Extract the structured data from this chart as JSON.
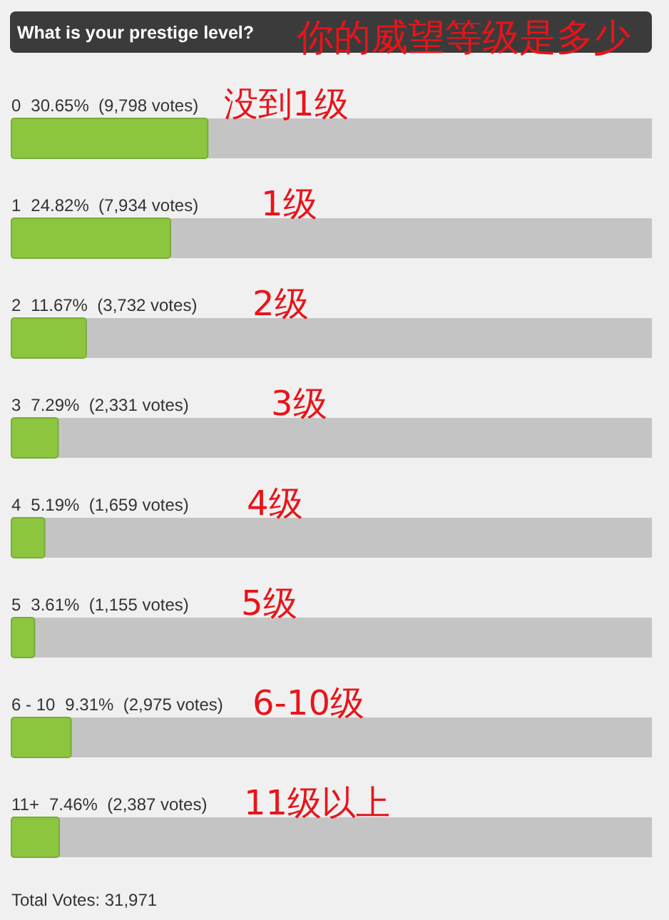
{
  "chart_data": {
    "type": "bar",
    "orientation": "horizontal",
    "title": "What is your prestige level?",
    "subtitle": "你的威望等级是多少",
    "categories": [
      "0",
      "1",
      "2",
      "3",
      "4",
      "5",
      "6 - 10",
      "11+"
    ],
    "values": [
      30.65,
      24.82,
      11.67,
      7.29,
      5.19,
      3.61,
      9.31,
      7.46
    ],
    "value_labels": [
      "30.65%  (9,798 votes)",
      "24.82%  (7,934 votes)",
      "11.67%  (3,732 votes)",
      "7.29%  (2,331 votes)",
      "5.19%  (1,659 votes)",
      "3.61%  (1,155 votes)",
      "9.31%  (2,975 votes)",
      "7.46%  (2,387 votes)"
    ],
    "color": "#8cc63f",
    "xlim": [
      0,
      100
    ],
    "tick_labels": "y",
    "annotations": [
      "没到1级",
      "1级",
      "2级",
      "3级",
      "4级",
      "5级",
      "6-10级",
      "11级以上",
      "Total Votes: 31,971"
    ]
  }
}
